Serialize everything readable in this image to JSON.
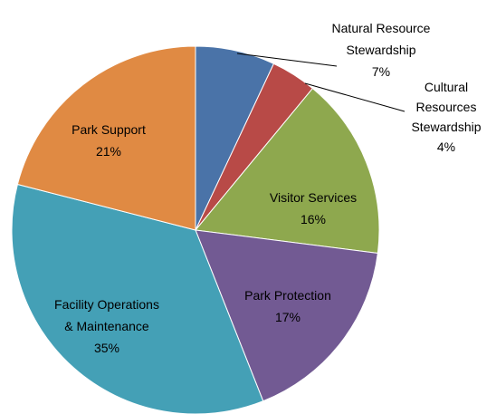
{
  "chart_data": {
    "type": "pie",
    "categories": [
      "Natural Resource Stewardship",
      "Cultural Resources Stewardship",
      "Visitor Services",
      "Park Protection",
      "Facility Operations & Maintenance",
      "Park Support"
    ],
    "values": [
      7,
      4,
      16,
      17,
      35,
      21
    ],
    "value_labels": [
      "7%",
      "4%",
      "16%",
      "17%",
      "35%",
      "21%"
    ],
    "colors": [
      "#4a73a8",
      "#b84a47",
      "#8ea84e",
      "#725a93",
      "#44a0b6",
      "#e08a43"
    ]
  }
}
